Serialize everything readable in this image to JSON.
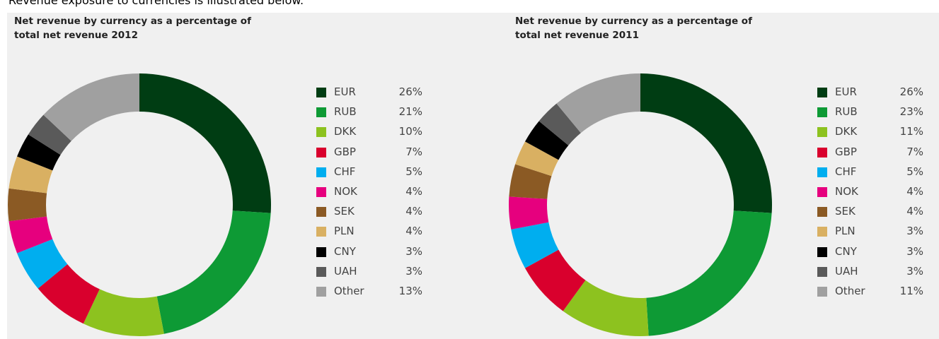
{
  "heading": "Revenue exposure to currencies is illustrated below.",
  "chart_data": [
    {
      "type": "pie",
      "title": "Net revenue by currency as a percentage of total net revenue 2012",
      "categories": [
        "EUR",
        "RUB",
        "DKK",
        "GBP",
        "CHF",
        "NOK",
        "SEK",
        "PLN",
        "CNY",
        "UAH",
        "Other"
      ],
      "values": [
        26,
        21,
        10,
        7,
        5,
        4,
        4,
        4,
        3,
        3,
        13
      ],
      "value_labels": [
        "26%",
        "21%",
        "10%",
        "7%",
        "5%",
        "4%",
        "4%",
        "4%",
        "3%",
        "3%",
        "13%"
      ],
      "colors": [
        "#003d13",
        "#0e9a35",
        "#8dc21f",
        "#d9002d",
        "#00aeef",
        "#e6007e",
        "#8b5a24",
        "#d9b062",
        "#000000",
        "#5a5a5a",
        "#a0a0a0"
      ]
    },
    {
      "type": "pie",
      "title": "Net revenue by currency as a percentage of total net revenue 2011",
      "categories": [
        "EUR",
        "RUB",
        "DKK",
        "GBP",
        "CHF",
        "NOK",
        "SEK",
        "PLN",
        "CNY",
        "UAH",
        "Other"
      ],
      "values": [
        26,
        23,
        11,
        7,
        5,
        4,
        4,
        3,
        3,
        3,
        11
      ],
      "value_labels": [
        "26%",
        "23%",
        "11%",
        "7%",
        "5%",
        "4%",
        "4%",
        "3%",
        "3%",
        "3%",
        "11%"
      ],
      "colors": [
        "#003d13",
        "#0e9a35",
        "#8dc21f",
        "#d9002d",
        "#00aeef",
        "#e6007e",
        "#8b5a24",
        "#d9b062",
        "#000000",
        "#5a5a5a",
        "#a0a0a0"
      ]
    }
  ]
}
